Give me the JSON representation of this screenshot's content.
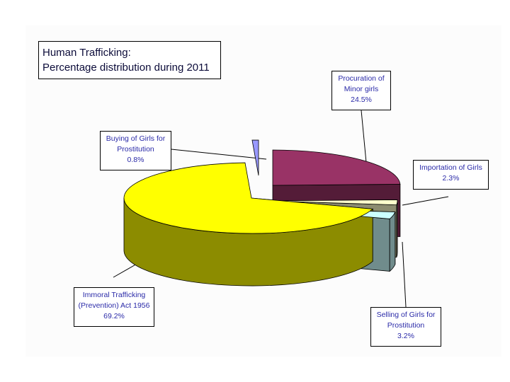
{
  "chart_data": {
    "type": "pie",
    "title_lines": [
      "Human Trafficking:",
      "Percentage distribution during 2011"
    ],
    "slices": [
      {
        "label": "Procuration of Minor girls",
        "label_lines": [
          "Procuration of",
          "Minor girls"
        ],
        "value": 24.5,
        "value_text": "24.5%",
        "color": "#993366"
      },
      {
        "label": "Importation of Girls",
        "label_lines": [
          "Importation of Girls"
        ],
        "value": 2.3,
        "value_text": "2.3%",
        "color": "#ffffcc"
      },
      {
        "label": "Selling of Girls for Prostitution",
        "label_lines": [
          "Selling of Girls for",
          "Prostitution"
        ],
        "value": 3.2,
        "value_text": "3.2%",
        "color": "#ccffff"
      },
      {
        "label": "Immoral Trafficking (Prevention) Act 1956",
        "label_lines": [
          "Immoral Trafficking",
          "(Prevention) Act 1956"
        ],
        "value": 69.2,
        "value_text": "69.2%",
        "color": "#ffff00"
      },
      {
        "label": "Buying of Girls for Prostitution",
        "label_lines": [
          "Buying of Girls for",
          "Prostitution"
        ],
        "value": 0.8,
        "value_text": "0.8%",
        "color": "#9999ff"
      }
    ],
    "start_direction": "top",
    "order": "clockwise",
    "style": "3d-exploded"
  }
}
